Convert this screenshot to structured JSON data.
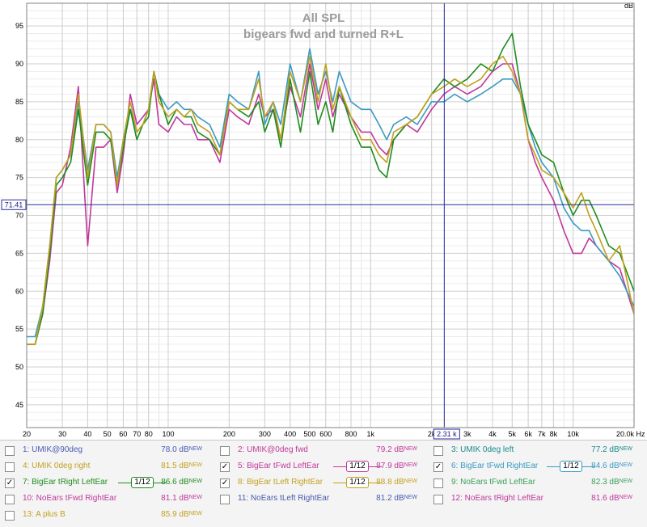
{
  "chart_data": {
    "type": "line",
    "title": "All SPL",
    "subtitle": "bigears fwd and turned R+L",
    "xlabel": "Hz",
    "ylabel": "dB",
    "xscale": "log",
    "xlim": [
      20,
      20000
    ],
    "ylim": [
      42,
      98
    ],
    "grid": true,
    "x_tick_labels": [
      "20",
      "30",
      "40",
      "50",
      "60",
      "70",
      "80",
      "100",
      "200",
      "300",
      "400",
      "500",
      "600",
      "800",
      "1k",
      "2k",
      "3k",
      "4k",
      "5k",
      "6k",
      "7k",
      "8k",
      "10k",
      "20.0k Hz"
    ],
    "x_tick_values": [
      20,
      30,
      40,
      50,
      60,
      70,
      80,
      100,
      200,
      300,
      400,
      500,
      600,
      800,
      1000,
      2000,
      3000,
      4000,
      5000,
      6000,
      7000,
      8000,
      10000,
      20000
    ],
    "y_ticks": [
      45,
      50,
      55,
      60,
      65,
      70,
      75,
      80,
      85,
      90,
      95
    ],
    "cursor": {
      "x_label": "2.31 k",
      "x_value": 2310,
      "y_label": "71.41",
      "y_value": 71.41,
      "color": "#2a2a9a"
    },
    "x_points": [
      20,
      22,
      24,
      26,
      28,
      30,
      33,
      36,
      40,
      44,
      48,
      52,
      56,
      60,
      65,
      70,
      75,
      80,
      85,
      90,
      100,
      110,
      120,
      130,
      140,
      160,
      180,
      200,
      220,
      250,
      280,
      300,
      330,
      360,
      400,
      450,
      500,
      550,
      600,
      650,
      700,
      800,
      900,
      1000,
      1100,
      1200,
      1300,
      1500,
      1700,
      2000,
      2300,
      2600,
      3000,
      3500,
      4000,
      4500,
      5000,
      5500,
      6000,
      6500,
      7000,
      8000,
      9000,
      10000,
      11000,
      12000,
      13000,
      15000,
      17000,
      20000
    ],
    "series": [
      {
        "name": "BigEar tFwd LeftEar",
        "color": "#c0389a",
        "values": [
          53,
          53,
          57,
          64,
          73,
          74,
          79,
          87,
          66,
          79,
          79,
          80,
          73,
          78,
          86,
          82,
          83,
          84,
          88,
          82,
          81,
          83,
          82,
          82,
          80,
          80,
          77,
          84,
          83,
          82,
          86,
          83,
          84,
          80,
          87,
          83,
          90,
          84,
          88,
          83,
          86,
          83,
          81,
          81,
          79,
          78,
          80,
          82,
          81,
          84,
          86,
          87,
          86,
          87,
          89,
          90,
          90,
          86,
          80,
          77,
          75,
          72,
          68,
          65,
          65,
          67,
          66,
          64,
          63,
          57
        ]
      },
      {
        "name": "BigEar tFwd RightEar",
        "color": "#3a9ac2",
        "values": [
          54,
          54,
          58,
          66,
          75,
          76,
          78,
          85,
          76,
          82,
          82,
          81,
          75,
          80,
          84,
          81,
          82,
          84,
          89,
          86,
          84,
          85,
          84,
          84,
          83,
          82,
          79,
          86,
          85,
          84,
          89,
          82,
          85,
          82,
          90,
          85,
          92,
          86,
          89,
          85,
          89,
          85,
          84,
          84,
          82,
          80,
          82,
          83,
          82,
          85,
          85,
          86,
          85,
          86,
          87,
          88,
          88,
          86,
          82,
          79,
          77,
          75,
          71,
          69,
          68,
          68,
          66,
          64,
          62,
          58
        ]
      },
      {
        "name": "BigEar tRight LeftEar",
        "color": "#1e8c1e",
        "values": [
          53,
          53,
          57,
          65,
          74,
          75,
          77,
          84,
          74,
          81,
          81,
          80,
          74,
          79,
          84,
          80,
          82,
          83,
          89,
          86,
          82,
          84,
          83,
          83,
          81,
          80,
          78,
          85,
          84,
          83,
          85,
          81,
          84,
          79,
          88,
          81,
          89,
          82,
          85,
          81,
          87,
          82,
          79,
          79,
          76,
          75,
          80,
          82,
          83,
          86,
          88,
          87,
          88,
          90,
          89,
          92,
          94,
          87,
          82,
          80,
          78,
          77,
          73,
          70,
          72,
          72,
          70,
          66,
          65,
          60
        ]
      },
      {
        "name": "BigEar tLeft RightEar",
        "color": "#c2a01e",
        "values": [
          53,
          53,
          58,
          66,
          75,
          76,
          78,
          86,
          75,
          82,
          82,
          81,
          74,
          80,
          85,
          81,
          82,
          84,
          89,
          85,
          83,
          84,
          83,
          84,
          82,
          81,
          78,
          85,
          84,
          84,
          88,
          83,
          85,
          80,
          89,
          85,
          91,
          85,
          90,
          84,
          87,
          83,
          80,
          80,
          78,
          77,
          81,
          82,
          83,
          86,
          87,
          88,
          87,
          88,
          90,
          91,
          89,
          86,
          80,
          78,
          76,
          75,
          73,
          71,
          73,
          70,
          68,
          64,
          66,
          57
        ]
      }
    ]
  },
  "legend": [
    {
      "num": "1",
      "label": "1: UMIK@90deg",
      "value": "78.0 dB",
      "badge": "NEW",
      "color": "#4a5ab0",
      "checked": false
    },
    {
      "num": "2",
      "label": "2: UMIK@0deg fwd",
      "value": "79.2 dB",
      "badge": "NEW",
      "color": "#c0389a",
      "checked": false
    },
    {
      "num": "3",
      "label": "3: UMIK 0deg left",
      "value": "77.2 dB",
      "badge": "NEW",
      "color": "#1a8a8a",
      "checked": false
    },
    {
      "num": "4",
      "label": "4: UMIK 0deg right",
      "value": "81.5 dB",
      "badge": "NEW",
      "color": "#c2a01e",
      "checked": false
    },
    {
      "num": "5",
      "label": "5: BigEar tFwd LeftEar",
      "value": "87.9 dB",
      "badge": "NEW",
      "color": "#c0389a",
      "checked": true,
      "smoothing": "1/12"
    },
    {
      "num": "6",
      "label": "6: BigEar tFwd RightEar",
      "value": "84.6 dB",
      "badge": "NEW",
      "color": "#3a9ac2",
      "checked": true,
      "smoothing": "1/12"
    },
    {
      "num": "7",
      "label": "7: BigEar tRight LeftEar",
      "value": "86.6 dB",
      "badge": "NEW",
      "color": "#1e8c1e",
      "checked": true,
      "smoothing": "1/12"
    },
    {
      "num": "8",
      "label": "8: BigEar tLeft RightEar",
      "value": "88.8 dB",
      "badge": "NEW",
      "color": "#c2a01e",
      "checked": true,
      "smoothing": "1/12"
    },
    {
      "num": "9",
      "label": "9: NoEars tFwd LeftEar",
      "value": "82.3 dB",
      "badge": "NEW",
      "color": "#3aa05a",
      "checked": false
    },
    {
      "num": "10",
      "label": "10: NoEars tFwd RightEar",
      "value": "81.1 dB",
      "badge": "NEW",
      "color": "#c0389a",
      "checked": false
    },
    {
      "num": "11",
      "label": "11: NoEars tLeft RightEar",
      "value": "81.2 dB",
      "badge": "NEW",
      "color": "#4a5ab0",
      "checked": false
    },
    {
      "num": "12",
      "label": "12: NoEars tRight LeftEar",
      "value": "81.6 dB",
      "badge": "NEW",
      "color": "#c0389a",
      "checked": false
    },
    {
      "num": "13",
      "label": "13: A plus B",
      "value": "85.9 dB",
      "badge": "NEW",
      "color": "#c2a01e",
      "checked": false
    }
  ]
}
